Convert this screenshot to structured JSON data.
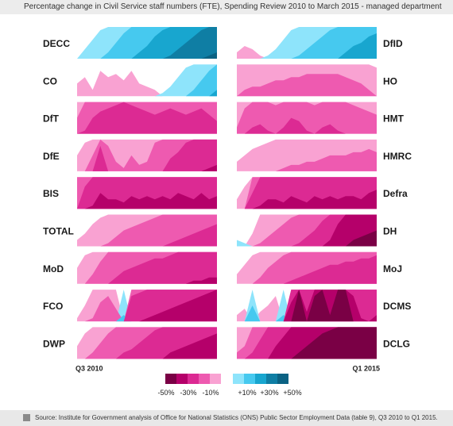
{
  "title": "Percentage change in Civil Service staff numbers (FTE), Spending Review 2010 to March 2015 - managed department",
  "source": "Source: Institute for Government analysis of Office for National Statistics (ONS) Public Sector Employment Data (table 9), Q3 2010 to Q1 2015.",
  "legend": {
    "negative_labels": [
      "-50%",
      "-30%",
      "-10%"
    ],
    "positive_labels": [
      "+10%",
      "+30%",
      "+50%"
    ],
    "negative_colors": [
      "#7a0045",
      "#b5006a",
      "#dc2a93",
      "#ee5ab0",
      "#f9a2d2"
    ],
    "positive_colors": [
      "#8ee4fb",
      "#46c9ef",
      "#18a6cf",
      "#0f7ea4",
      "#0b6283"
    ]
  },
  "chart_data": {
    "type": "area",
    "subtype": "horizon",
    "x_start_label": "Q3 2010",
    "x_end_label": "Q1 2015",
    "band_step_percent": 10,
    "n_quarters": 19,
    "panels": [
      {
        "label": "DECC",
        "values": [
          0,
          3,
          6,
          9,
          12,
          15,
          18,
          20,
          22,
          24,
          27,
          29,
          31,
          33,
          35,
          37,
          39,
          41,
          42
        ]
      },
      {
        "label": "DfID",
        "values": [
          -2,
          -4,
          -3,
          -1,
          1,
          3,
          6,
          9,
          11,
          13,
          15,
          17,
          19,
          20,
          22,
          24,
          25,
          27,
          28
        ]
      },
      {
        "label": "CO",
        "values": [
          -4,
          -6,
          -2,
          -8,
          -6,
          -7,
          -5,
          -8,
          -4,
          -3,
          -2,
          1,
          3,
          6,
          9,
          12,
          15,
          18,
          22
        ]
      },
      {
        "label": "HO",
        "values": [
          -10,
          -12,
          -13,
          -13,
          -14,
          -15,
          -15,
          -16,
          -16,
          -17,
          -17,
          -17,
          -17,
          -17,
          -16,
          -15,
          -14,
          -12,
          -9
        ]
      },
      {
        "label": "DfT",
        "values": [
          -15,
          -21,
          -25,
          -27,
          -28,
          -29,
          -30,
          -29,
          -28,
          -27,
          -26,
          -27,
          -28,
          -27,
          -26,
          -27,
          -28,
          -26,
          -24
        ]
      },
      {
        "label": "HMT",
        "values": [
          -12,
          -18,
          -22,
          -23,
          -21,
          -19,
          -22,
          -25,
          -24,
          -21,
          -19,
          -22,
          -23,
          -21,
          -20,
          -19,
          -18,
          -17,
          -16
        ]
      },
      {
        "label": "DfE",
        "values": [
          -5,
          -9,
          -15,
          -28,
          -18,
          -13,
          -11,
          -15,
          -12,
          -13,
          -19,
          -20,
          -24,
          -26,
          -29,
          -30,
          -30,
          -31,
          -32
        ]
      },
      {
        "label": "HMRC",
        "values": [
          -3,
          -5,
          -7,
          -8,
          -9,
          -10,
          -11,
          -12,
          -12,
          -13,
          -13,
          -14,
          -15,
          -15,
          -15,
          -16,
          -16,
          -17,
          -16
        ]
      },
      {
        "label": "BIS",
        "values": [
          -20,
          -27,
          -31,
          -35,
          -33,
          -33,
          -32,
          -34,
          -33,
          -34,
          -33,
          -34,
          -33,
          -35,
          -34,
          -33,
          -35,
          -33,
          -34
        ]
      },
      {
        "label": "Defra",
        "values": [
          -3,
          -7,
          -25,
          -31,
          -33,
          -33,
          -32,
          -34,
          -33,
          -32,
          -34,
          -33,
          -34,
          -33,
          -34,
          -34,
          -33,
          -35,
          -36
        ]
      },
      {
        "label": "TOTAL",
        "values": [
          -2,
          -4,
          -7,
          -9,
          -11,
          -13,
          -15,
          -16,
          -17,
          -18,
          -19,
          -20,
          -21,
          -22,
          -23,
          -24,
          -25,
          -26,
          -27
        ]
      },
      {
        "label": "DH",
        "values": [
          2,
          1,
          -4,
          -11,
          -13,
          -15,
          -17,
          -19,
          -21,
          -23,
          -25,
          -28,
          -32,
          -37,
          -40,
          -42,
          -43,
          -44,
          -45
        ]
      },
      {
        "label": "MoD",
        "values": [
          -5,
          -9,
          -13,
          -17,
          -20,
          -22,
          -24,
          -25,
          -26,
          -27,
          -28,
          -28,
          -29,
          -30,
          -30,
          -31,
          -31,
          -32,
          -32
        ]
      },
      {
        "label": "MoJ",
        "values": [
          -3,
          -6,
          -9,
          -12,
          -15,
          -17,
          -19,
          -21,
          -22,
          -23,
          -24,
          -25,
          -26,
          -26,
          -27,
          -27,
          -28,
          -28,
          -29
        ]
      },
      {
        "label": "FCO",
        "values": [
          -1,
          -5,
          -11,
          -16,
          -18,
          -14,
          12,
          -28,
          -29,
          -31,
          -32,
          -33,
          -34,
          -35,
          -36,
          -37,
          -38,
          -39,
          -40
        ]
      },
      {
        "label": "DCMS",
        "values": [
          -2,
          -4,
          15,
          -3,
          -5,
          -8,
          12,
          -36,
          -52,
          -33,
          -48,
          -58,
          -42,
          -56,
          -51,
          -38,
          -31,
          -30,
          -32
        ]
      },
      {
        "label": "DWP",
        "values": [
          -4,
          -8,
          -12,
          -15,
          -18,
          -20,
          -22,
          -23,
          -25,
          -27,
          -29,
          -30,
          -32,
          -33,
          -34,
          -35,
          -36,
          -37,
          -38
        ]
      },
      {
        "label": "DCLG",
        "values": [
          -12,
          -14,
          -22,
          -26,
          -30,
          -34,
          -37,
          -40,
          -42,
          -44,
          -46,
          -48,
          -49,
          -50,
          -50,
          -51,
          -52,
          -53,
          -53
        ]
      }
    ]
  }
}
